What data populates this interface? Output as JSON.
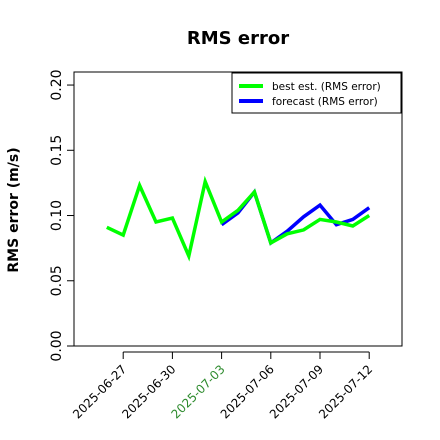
{
  "chart_data": {
    "type": "line",
    "title": "RMS error",
    "xlabel": "",
    "ylabel": "RMS error (m/s)",
    "xlim": [
      "2025-06-24",
      "2025-07-14"
    ],
    "ylim": [
      0.0,
      0.21
    ],
    "y_ticks": [
      "0.00",
      "0.05",
      "0.10",
      "0.15",
      "0.20"
    ],
    "x_ticks": [
      {
        "date": "2025-06-27",
        "label": "2025-06-27",
        "color": "#000000"
      },
      {
        "date": "2025-06-30",
        "label": "2025-06-30",
        "color": "#000000"
      },
      {
        "date": "2025-07-03",
        "label": "2025-07-03",
        "color": "#2e8b2e"
      },
      {
        "date": "2025-07-06",
        "label": "2025-07-06",
        "color": "#000000"
      },
      {
        "date": "2025-07-09",
        "label": "2025-07-09",
        "color": "#000000"
      },
      {
        "date": "2025-07-12",
        "label": "2025-07-12",
        "color": "#000000"
      }
    ],
    "legend_position": "top-right",
    "grid": false,
    "series": [
      {
        "name": "forecast (RMS error)",
        "color": "#0000ff",
        "x": [
          "2025-07-03",
          "2025-07-04",
          "2025-07-05",
          "2025-07-06",
          "2025-07-07",
          "2025-07-08",
          "2025-07-09",
          "2025-07-10",
          "2025-07-11",
          "2025-07-12"
        ],
        "y": [
          0.093,
          0.102,
          0.118,
          0.079,
          0.088,
          0.099,
          0.108,
          0.093,
          0.097,
          0.106
        ]
      },
      {
        "name": "best est. (RMS error)",
        "color": "#00ff00",
        "x": [
          "2025-06-26",
          "2025-06-27",
          "2025-06-28",
          "2025-06-29",
          "2025-06-30",
          "2025-07-01",
          "2025-07-02",
          "2025-07-03",
          "2025-07-04",
          "2025-07-05",
          "2025-07-06",
          "2025-07-07",
          "2025-07-08",
          "2025-07-09",
          "2025-07-10",
          "2025-07-11",
          "2025-07-12"
        ],
        "y": [
          0.091,
          0.085,
          0.123,
          0.095,
          0.098,
          0.069,
          0.126,
          0.095,
          0.104,
          0.118,
          0.079,
          0.086,
          0.089,
          0.097,
          0.095,
          0.092,
          0.1
        ]
      }
    ]
  }
}
